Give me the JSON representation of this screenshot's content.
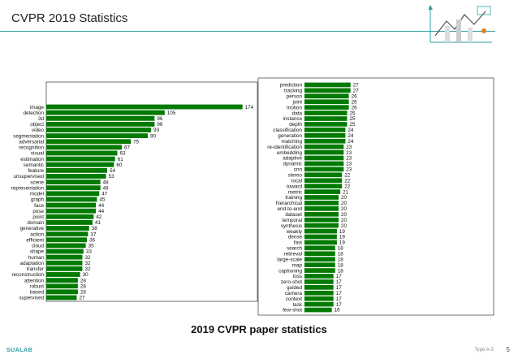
{
  "slide": {
    "title": "CVPR 2019 Statistics",
    "caption": "2019 CVPR paper statistics",
    "footer_brand": "SUALAB",
    "footer_ref": "Type A-3",
    "page_number": "5"
  },
  "colors": {
    "bar": "#007a00",
    "accent": "#2aa0a0"
  },
  "chart_data": [
    {
      "type": "bar",
      "orientation": "horizontal",
      "title": "",
      "xlabel": "",
      "ylabel": "",
      "xlim": [
        0,
        180
      ],
      "categories": [
        "image",
        "detection",
        "3d",
        "object",
        "video",
        "segmentation",
        "adversarial",
        "recognition",
        "visual",
        "estimation",
        "semantic",
        "feature",
        "unsupervised",
        "scene",
        "representation",
        "model",
        "graph",
        "face",
        "pose",
        "point",
        "domain",
        "generative",
        "action",
        "efficient",
        "cloud",
        "shape",
        "human",
        "adaptation",
        "transfer",
        "reconstruction",
        "attention",
        "robust",
        "based",
        "supervised"
      ],
      "values": [
        174,
        105,
        96,
        96,
        93,
        90,
        75,
        67,
        63,
        61,
        60,
        54,
        53,
        48,
        48,
        47,
        45,
        44,
        44,
        42,
        41,
        38,
        37,
        36,
        35,
        33,
        32,
        32,
        32,
        30,
        28,
        28,
        28,
        27
      ]
    },
    {
      "type": "bar",
      "orientation": "horizontal",
      "title": "",
      "xlabel": "",
      "ylabel": "",
      "xlim": [
        0,
        30
      ],
      "categories": [
        "prediction",
        "tracking",
        "person",
        "joint",
        "motion",
        "data",
        "instance",
        "depth",
        "classification",
        "generation",
        "matching",
        "re-identification",
        "embedding",
        "adaptive",
        "dynamic",
        "cnn",
        "stereo",
        "local",
        "toward",
        "metric",
        "training",
        "hierarchical",
        "end-to-end",
        "dataset",
        "temporal",
        "synthesis",
        "weakly",
        "dense",
        "fast",
        "search",
        "retrieval",
        "large-scale",
        "map",
        "captioning",
        "loss",
        "zero-shot",
        "guided",
        "camera",
        "context",
        "task",
        "few-shot"
      ],
      "values": [
        27,
        27,
        26,
        26,
        26,
        25,
        25,
        25,
        24,
        24,
        24,
        23,
        23,
        23,
        23,
        23,
        22,
        22,
        22,
        21,
        20,
        20,
        20,
        20,
        20,
        20,
        19,
        19,
        19,
        18,
        18,
        18,
        18,
        18,
        17,
        17,
        17,
        17,
        17,
        17,
        16
      ]
    }
  ]
}
